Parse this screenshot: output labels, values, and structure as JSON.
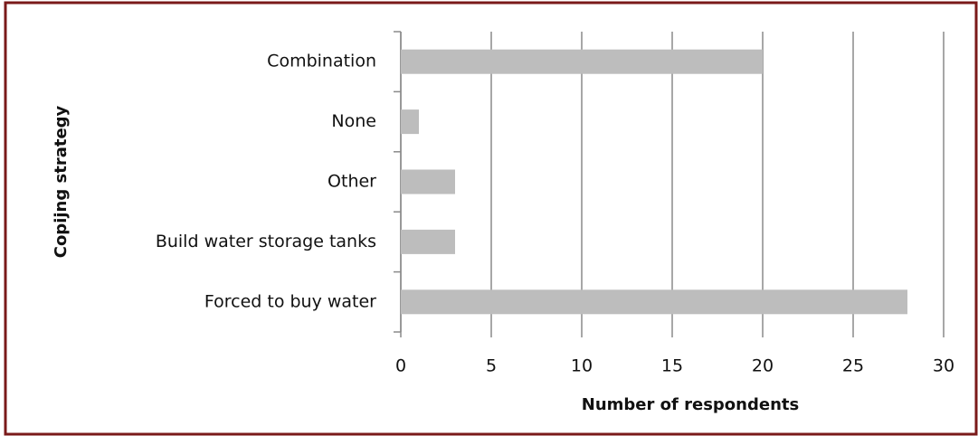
{
  "chart_data": {
    "type": "bar",
    "orientation": "horizontal",
    "x_label": "Number of respondents",
    "y_label": "Copijng strategy",
    "categories": [
      "Combination",
      "None",
      "Other",
      "Build water storage tanks",
      "Forced to buy water"
    ],
    "values": [
      20,
      1,
      3,
      3,
      28
    ],
    "color": "#bdbdbd",
    "xlim": [
      0,
      30
    ],
    "xticks": [
      0,
      5,
      10,
      15,
      20,
      25,
      30
    ],
    "grid": true
  }
}
